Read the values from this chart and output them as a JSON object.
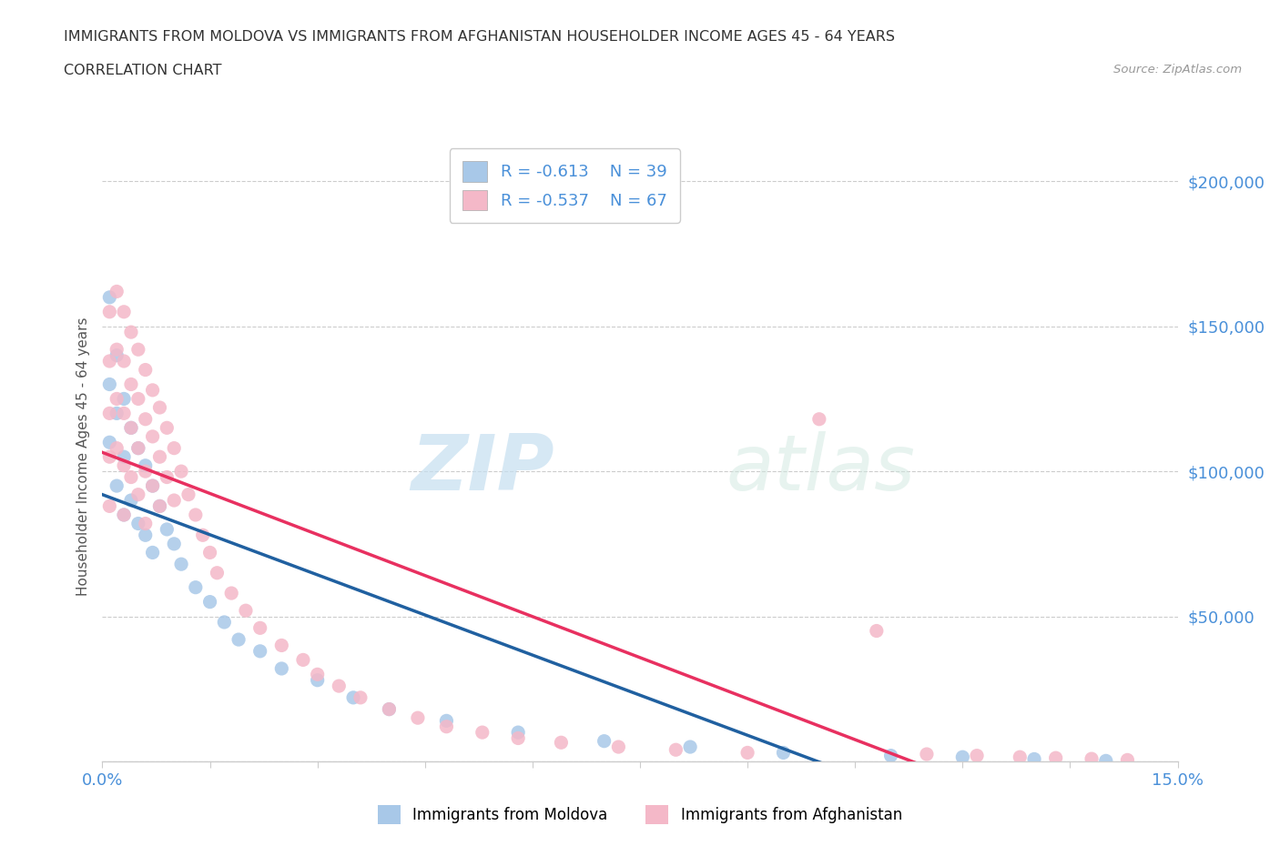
{
  "title_line1": "IMMIGRANTS FROM MOLDOVA VS IMMIGRANTS FROM AFGHANISTAN HOUSEHOLDER INCOME AGES 45 - 64 YEARS",
  "title_line2": "CORRELATION CHART",
  "source": "Source: ZipAtlas.com",
  "ylabel": "Householder Income Ages 45 - 64 years",
  "xlim": [
    0.0,
    0.15
  ],
  "ylim": [
    0,
    210000
  ],
  "yticks": [
    0,
    50000,
    100000,
    150000,
    200000
  ],
  "xticks": [
    0.0,
    0.015,
    0.03,
    0.045,
    0.06,
    0.075,
    0.09,
    0.105,
    0.12,
    0.135,
    0.15
  ],
  "moldova_color": "#a8c8e8",
  "moldova_line_color": "#2060a0",
  "afghanistan_color": "#f4b8c8",
  "afghanistan_line_color": "#e83060",
  "moldova_label": "Immigrants from Moldova",
  "afghanistan_label": "Immigrants from Afghanistan",
  "moldova_R": -0.613,
  "moldova_N": 39,
  "afghanistan_R": -0.537,
  "afghanistan_N": 67,
  "background_color": "#ffffff",
  "moldova_x": [
    0.001,
    0.001,
    0.001,
    0.002,
    0.002,
    0.002,
    0.003,
    0.003,
    0.003,
    0.004,
    0.004,
    0.005,
    0.005,
    0.006,
    0.006,
    0.007,
    0.007,
    0.008,
    0.009,
    0.01,
    0.011,
    0.013,
    0.015,
    0.017,
    0.019,
    0.022,
    0.025,
    0.03,
    0.035,
    0.04,
    0.048,
    0.058,
    0.07,
    0.082,
    0.095,
    0.11,
    0.12,
    0.13,
    0.14
  ],
  "moldova_y": [
    130000,
    160000,
    110000,
    140000,
    120000,
    95000,
    125000,
    105000,
    85000,
    115000,
    90000,
    108000,
    82000,
    102000,
    78000,
    95000,
    72000,
    88000,
    80000,
    75000,
    68000,
    60000,
    55000,
    48000,
    42000,
    38000,
    32000,
    28000,
    22000,
    18000,
    14000,
    10000,
    7000,
    5000,
    3000,
    2000,
    1500,
    800,
    200
  ],
  "afghanistan_x": [
    0.001,
    0.001,
    0.001,
    0.001,
    0.001,
    0.002,
    0.002,
    0.002,
    0.002,
    0.003,
    0.003,
    0.003,
    0.003,
    0.003,
    0.004,
    0.004,
    0.004,
    0.004,
    0.005,
    0.005,
    0.005,
    0.005,
    0.006,
    0.006,
    0.006,
    0.006,
    0.007,
    0.007,
    0.007,
    0.008,
    0.008,
    0.008,
    0.009,
    0.009,
    0.01,
    0.01,
    0.011,
    0.012,
    0.013,
    0.014,
    0.015,
    0.016,
    0.018,
    0.02,
    0.022,
    0.025,
    0.028,
    0.03,
    0.033,
    0.036,
    0.04,
    0.044,
    0.048,
    0.053,
    0.058,
    0.064,
    0.072,
    0.08,
    0.09,
    0.1,
    0.108,
    0.115,
    0.122,
    0.128,
    0.133,
    0.138,
    0.143
  ],
  "afghanistan_y": [
    155000,
    138000,
    120000,
    105000,
    88000,
    162000,
    142000,
    125000,
    108000,
    155000,
    138000,
    120000,
    102000,
    85000,
    148000,
    130000,
    115000,
    98000,
    142000,
    125000,
    108000,
    92000,
    135000,
    118000,
    100000,
    82000,
    128000,
    112000,
    95000,
    122000,
    105000,
    88000,
    115000,
    98000,
    108000,
    90000,
    100000,
    92000,
    85000,
    78000,
    72000,
    65000,
    58000,
    52000,
    46000,
    40000,
    35000,
    30000,
    26000,
    22000,
    18000,
    15000,
    12000,
    10000,
    8000,
    6500,
    5000,
    4000,
    3000,
    118000,
    45000,
    2500,
    2000,
    1500,
    1200,
    900,
    500
  ]
}
